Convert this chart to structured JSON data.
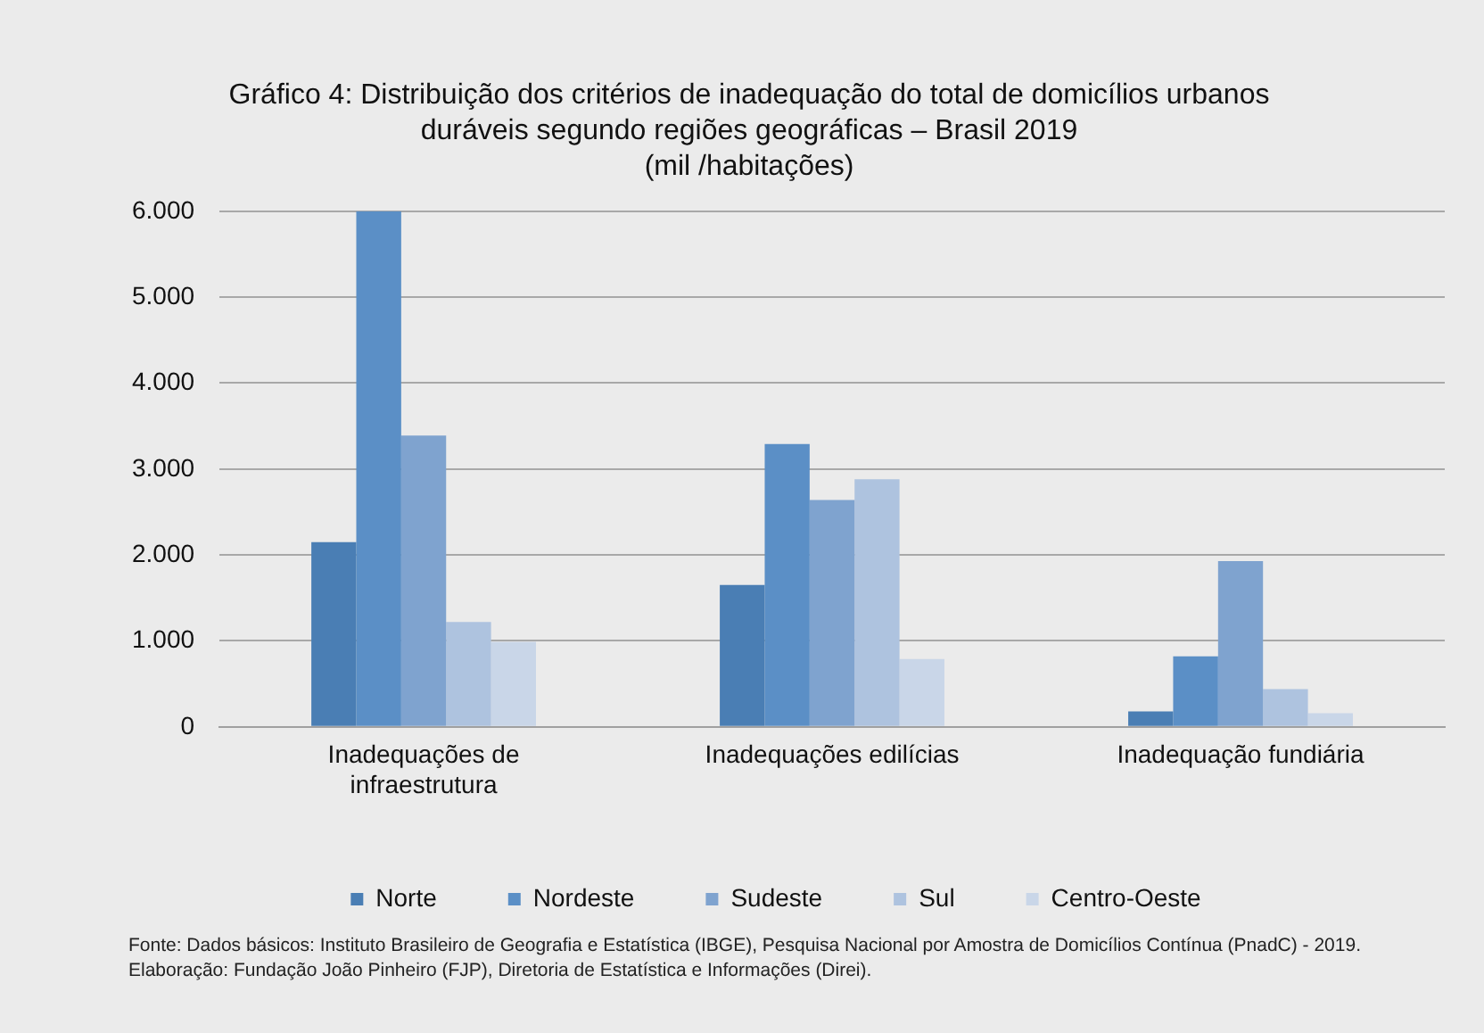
{
  "chart_data": {
    "type": "bar",
    "title": "Gráfico 4: Distribuição dos critérios de inadequação do total de domicílios urbanos duráveis segundo regiões geográficas – Brasil 2019",
    "subtitle": "(mil /habitações)",
    "categories": [
      "Inadequações de infraestrutura",
      "Inadequações edilícias",
      "Inadequação fundiária"
    ],
    "series": [
      {
        "name": "Norte",
        "color": "#4a7eb4",
        "values": [
          2150,
          1650,
          180
        ]
      },
      {
        "name": "Nordeste",
        "color": "#5b8fc6",
        "values": [
          6000,
          3290,
          820
        ]
      },
      {
        "name": "Sudeste",
        "color": "#7fa3cf",
        "values": [
          3390,
          2640,
          1930
        ]
      },
      {
        "name": "Sul",
        "color": "#aec3df",
        "values": [
          1220,
          2880,
          440
        ]
      },
      {
        "name": "Centro-Oeste",
        "color": "#c9d6e8",
        "values": [
          990,
          790,
          160
        ]
      }
    ],
    "ylim": [
      0,
      6000
    ],
    "yticks": [
      {
        "value": 0,
        "label": "0"
      },
      {
        "value": 1000,
        "label": "1.000"
      },
      {
        "value": 2000,
        "label": "2.000"
      },
      {
        "value": 3000,
        "label": "3.000"
      },
      {
        "value": 4000,
        "label": "4.000"
      },
      {
        "value": 5000,
        "label": "5.000"
      },
      {
        "value": 6000,
        "label": "6.000"
      }
    ],
    "grid": "y",
    "legend": "bottom",
    "annotations": [
      "Fonte: Dados básicos: Instituto Brasileiro de Geografia e Estatística (IBGE), Pesquisa Nacional por Amostra de Domicílios Contínua (PnadC) - 2019.",
      "Elaboração: Fundação João Pinheiro (FJP), Diretoria de Estatística e Informações (Direi)."
    ]
  }
}
